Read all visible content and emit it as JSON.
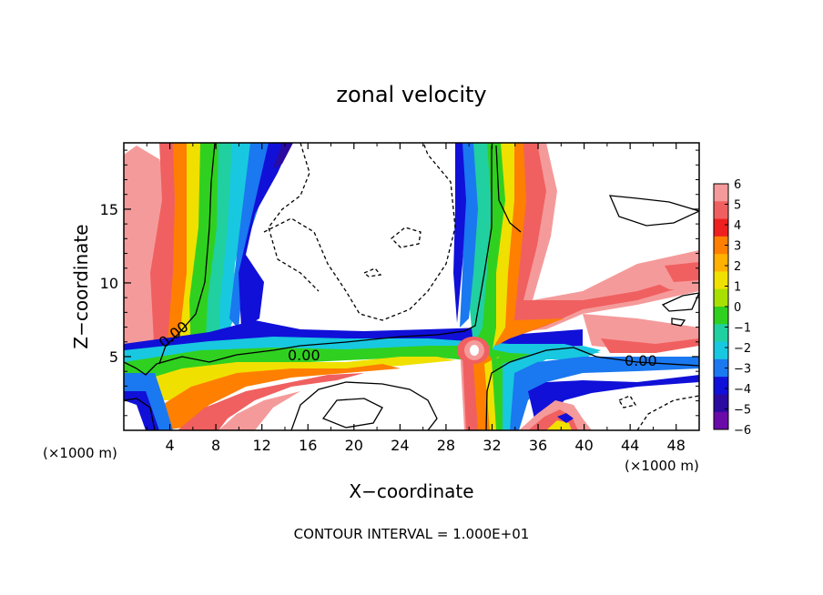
{
  "chart_data": {
    "type": "heatmap",
    "title": "zonal velocity",
    "xlabel": "X−coordinate",
    "ylabel": "Z−coordinate",
    "x_unit_left": "(×1000 m)",
    "x_unit_right": "(×1000 m)",
    "footer": "CONTOUR INTERVAL = 1.000E+01",
    "xlim": [
      0,
      50
    ],
    "ylim": [
      0,
      19.5
    ],
    "x_ticks": [
      4,
      8,
      12,
      16,
      20,
      24,
      28,
      32,
      36,
      40,
      44,
      48
    ],
    "x_tick_labels": [
      "4",
      "8",
      "12",
      "16",
      "20",
      "24",
      "28",
      "32",
      "36",
      "40",
      "44",
      "48"
    ],
    "y_ticks": [
      5,
      10,
      15
    ],
    "y_tick_labels": [
      "5",
      "10",
      "15"
    ],
    "contour_labels": [
      {
        "text": "0.00",
        "x": 4.7,
        "y": 6.6
      },
      {
        "text": "0.00",
        "x": 15.8,
        "y": 5.1
      },
      {
        "text": "0.00",
        "x": 44.8,
        "y": 4.8
      }
    ],
    "colorbar": {
      "labels": [
        "6",
        "5",
        "4",
        "3",
        "2",
        "1",
        "0",
        "−1",
        "−2",
        "−3",
        "−4",
        "−5",
        "−6"
      ],
      "colors": [
        "#f59a9a",
        "#f06060",
        "#ee2020",
        "#ff7f00",
        "#ffb000",
        "#f0e000",
        "#a8e000",
        "#30d020",
        "#20d0a0",
        "#18c8e0",
        "#1a78f0",
        "#1010d8",
        "#2a0aa0",
        "#6a0aa8"
      ]
    },
    "grid": false
  }
}
